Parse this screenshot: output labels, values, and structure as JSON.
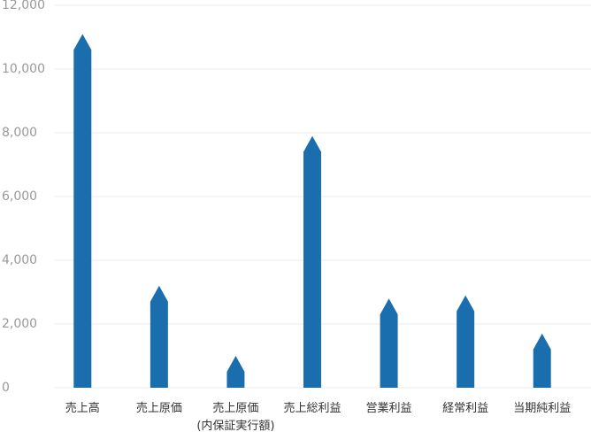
{
  "chart_data": {
    "type": "bar",
    "categories": [
      "売上高",
      "売上原価",
      "売上原価\n(内保証実行額)",
      "売上総利益",
      "営業利益",
      "経常利益",
      "当期純利益"
    ],
    "values": [
      11100,
      3200,
      1000,
      7900,
      2800,
      2900,
      1700
    ],
    "color": "#1a6ead",
    "ylim": [
      0,
      12000
    ],
    "yticks": [
      0,
      {
        "value": 2000,
        "label": "2,000"
      },
      {
        "value": 4000,
        "label": "4,000"
      },
      {
        "value": 6000,
        "label": "6,000"
      },
      {
        "value": 8000,
        "label": "8,000"
      },
      {
        "value": 10000,
        "label": "10,000"
      },
      {
        "value": 12000,
        "label": "12,000"
      }
    ],
    "grid": true
  }
}
